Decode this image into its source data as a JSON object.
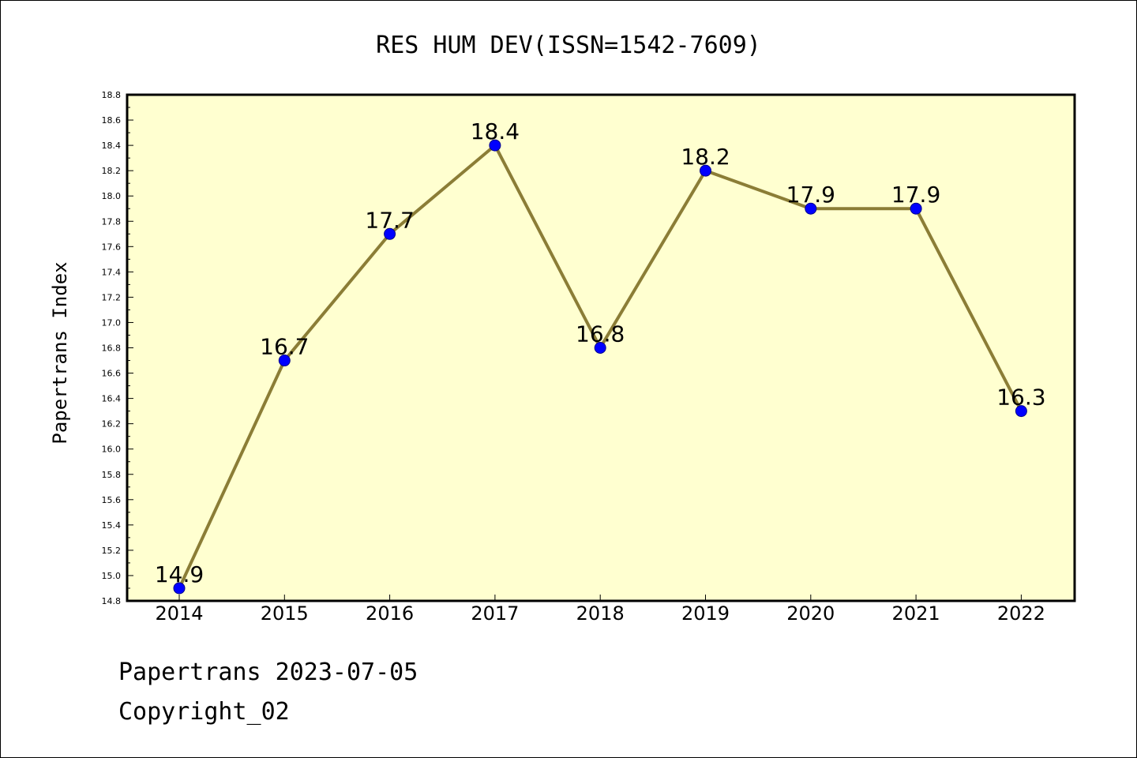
{
  "chart_data": {
    "type": "line",
    "title": "RES HUM DEV(ISSN=1542-7609)",
    "ylabel": "Papertrans Index",
    "xlabel": "",
    "categories": [
      "2014",
      "2015",
      "2016",
      "2017",
      "2018",
      "2019",
      "2020",
      "2021",
      "2022"
    ],
    "values": [
      14.9,
      16.7,
      17.7,
      18.4,
      16.8,
      18.2,
      17.9,
      17.9,
      16.3
    ],
    "data_labels": [
      "14.9",
      "16.7",
      "17.7",
      "18.4",
      "16.8",
      "18.2",
      "17.9",
      "17.9",
      "16.3"
    ],
    "ylim": [
      14.8,
      18.8
    ],
    "yticks": [
      "14.8",
      "15.0",
      "15.2",
      "15.4",
      "15.6",
      "15.8",
      "16.0",
      "16.2",
      "16.4",
      "16.6",
      "16.8",
      "17.0",
      "17.2",
      "17.4",
      "17.6",
      "17.8",
      "18.0",
      "18.2",
      "18.4",
      "18.6",
      "18.8"
    ],
    "grid": false,
    "colors": {
      "plot_background": "#ffffd0",
      "line": "#8b7d36",
      "marker_fill": "#0000ff",
      "marker_stroke": "#00008b"
    }
  },
  "footer": {
    "line1": "Papertrans 2023-07-05",
    "line2": "Copyright_02"
  }
}
